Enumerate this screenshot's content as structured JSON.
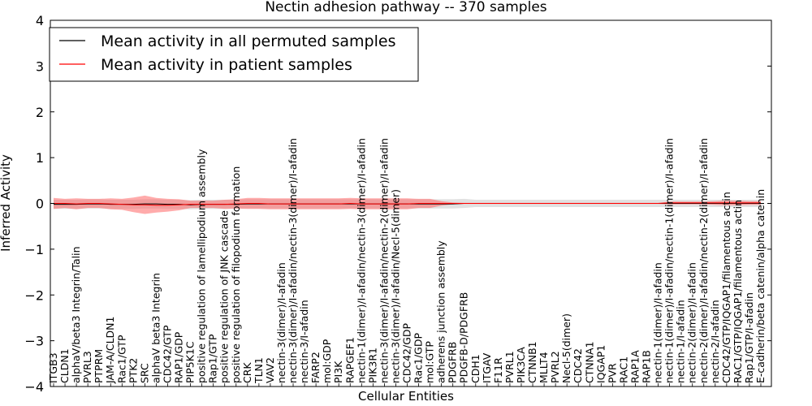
{
  "chart_data": {
    "type": "line",
    "title": "Nectin adhesion pathway -- 370 samples",
    "xlabel": "Cellular Entities",
    "ylabel": "Inferred Activity",
    "ylim": [
      -4,
      4
    ],
    "yticks": [
      -4,
      -3,
      -2,
      -1,
      0,
      1,
      2,
      3,
      4
    ],
    "ytick_labels": [
      "−4",
      "−3",
      "−2",
      "−1",
      "0",
      "1",
      "2",
      "3",
      "4"
    ],
    "grid": false,
    "legend_position": "top-left",
    "categories": [
      "ITGB3",
      "CLDN1",
      "alphaV/beta3 Integrin/Talin",
      "PVRL3",
      "PTPRM",
      "JAM-A/CLDN1",
      "Rac1/GTP",
      "PTK2",
      "SRC",
      "alphaV beta3 Integrin",
      "CDC42/GTP",
      "RAP1/GDP",
      "PIP5K1C",
      "positive regulation of lamellipodium assembly",
      "Rap1/GTP",
      "positive regulation of JNK cascade",
      "positive regulation of filopodium formation",
      "CRK",
      "TLN1",
      "VAV2",
      "nectin-3(dimer)/I-afadin",
      "nectin-3(dimer)/I-afadin/nectin-3(dimer)/I-afadin",
      "nectin-3/I-afadin",
      "FARP2",
      "mol:GDP",
      "PI3K",
      "RAPGEF1",
      "nectin-1(dimer)/I-afadin/nectin-3(dimer)/I-afadin",
      "PIK3R1",
      "nectin-3(dimer)/I-afadin/nectin-2(dimer)/I-afadin",
      "nectin-3(dimer)/I-afadin/Necl-5(dimer)",
      "CDC42/GDP",
      "Rac1/GDP",
      "mol:GTP",
      "adherens junction assembly",
      "PDGFRB",
      "PDGFB-D/PDGFRB",
      "CDH1",
      "ITGAV",
      "F11R",
      "PVRL1",
      "PIK3CA",
      "CTNNB1",
      "MLLT4",
      "PVRL2",
      "Necl-5(dimer)",
      "CDC42",
      "CTNNA1",
      "IQGAP1",
      "PVR",
      "RAC1",
      "RAP1A",
      "RAP1B",
      "nectin-1(dimer)/I-afadin",
      "nectin-1(dimer)/I-afadin/nectin-1(dimer)/I-afadin",
      "nectin-1/I-afadin",
      "nectin-2(dimer)/I-afadin",
      "nectin-2(dimer)/I-afadin/nectin-2(dimer)/I-afadin",
      "nectin-2/I-afadin",
      "CDC42/GTP/IQGAP1/filamentous actin",
      "RAC1/GTP/IQGAP1/filamentous actin",
      "Rap1/GTP/I-afadin",
      "E-cadherin/beta catenin/alpha catenin"
    ],
    "series": [
      {
        "name": "Mean activity in all permuted samples",
        "color": "#000000",
        "values": [
          -0.02,
          -0.02,
          -0.02,
          -0.01,
          -0.01,
          -0.02,
          -0.02,
          -0.02,
          -0.01,
          -0.01,
          -0.02,
          -0.02,
          -0.03,
          -0.02,
          -0.02,
          -0.02,
          -0.02,
          -0.01,
          -0.01,
          -0.01,
          -0.01,
          -0.01,
          -0.01,
          -0.01,
          -0.01,
          -0.01,
          -0.01,
          -0.01,
          -0.01,
          -0.01,
          -0.01,
          -0.01,
          -0.01,
          -0.01,
          -0.01,
          -0.01,
          0,
          0,
          0,
          0,
          0,
          0,
          0,
          0,
          0,
          0,
          0,
          0,
          0,
          0,
          0,
          0,
          0,
          0,
          0,
          0,
          0,
          0,
          0,
          0,
          0,
          0,
          0
        ],
        "band": [
          0.1,
          0.1,
          0.1,
          0.1,
          0.1,
          0.1,
          0.1,
          0.1,
          0.1,
          0.1,
          0.1,
          0.1,
          0.1,
          0.1,
          0.1,
          0.1,
          0.1,
          0.1,
          0.1,
          0.1,
          0.1,
          0.1,
          0.1,
          0.1,
          0.1,
          0.1,
          0.1,
          0.1,
          0.1,
          0.1,
          0.1,
          0.1,
          0.1,
          0.1,
          0.1,
          0.1,
          0.1,
          0.08,
          0.08,
          0.08,
          0.08,
          0.08,
          0.08,
          0.08,
          0.08,
          0.08,
          0.08,
          0.08,
          0.08,
          0.08,
          0.08,
          0.08,
          0.08,
          0.08,
          0.08,
          0.08,
          0.08,
          0.08,
          0.08,
          0.08,
          0.08,
          0.08,
          0.08
        ]
      },
      {
        "name": "Mean activity in patient samples",
        "color": "#ff0000",
        "values": [
          0.0,
          0.0,
          -0.01,
          0.0,
          0.0,
          -0.01,
          -0.02,
          -0.03,
          -0.03,
          -0.04,
          -0.04,
          -0.03,
          -0.02,
          -0.02,
          -0.02,
          -0.02,
          -0.01,
          0.0,
          0.0,
          -0.01,
          -0.01,
          -0.01,
          -0.01,
          -0.01,
          -0.01,
          -0.01,
          0.0,
          -0.01,
          -0.01,
          -0.01,
          -0.01,
          -0.01,
          0.0,
          0.0,
          0.0,
          0.0,
          0.0,
          0.0,
          0.0,
          0.0,
          0.0,
          0.0,
          0.0,
          0.0,
          0.0,
          0.0,
          0.0,
          0.0,
          0.0,
          0.0,
          0.0,
          0.0,
          0.0,
          0.0,
          0.01,
          0.01,
          0.01,
          0.01,
          0.01,
          0.01,
          0.01,
          0.01,
          0.01
        ],
        "band": [
          0.12,
          0.1,
          0.12,
          0.1,
          0.1,
          0.12,
          0.12,
          0.16,
          0.2,
          0.16,
          0.14,
          0.12,
          0.08,
          0.08,
          0.08,
          0.1,
          0.1,
          0.12,
          0.12,
          0.12,
          0.12,
          0.12,
          0.12,
          0.12,
          0.12,
          0.12,
          0.12,
          0.12,
          0.12,
          0.12,
          0.12,
          0.12,
          0.1,
          0.1,
          0.05,
          0.02,
          0.01,
          0.01,
          0.01,
          0.01,
          0.01,
          0.01,
          0.01,
          0.01,
          0.01,
          0.01,
          0.01,
          0.01,
          0.01,
          0.01,
          0.01,
          0.01,
          0.01,
          0.01,
          0.03,
          0.03,
          0.03,
          0.03,
          0.04,
          0.05,
          0.05,
          0.04,
          0.04
        ]
      }
    ]
  }
}
